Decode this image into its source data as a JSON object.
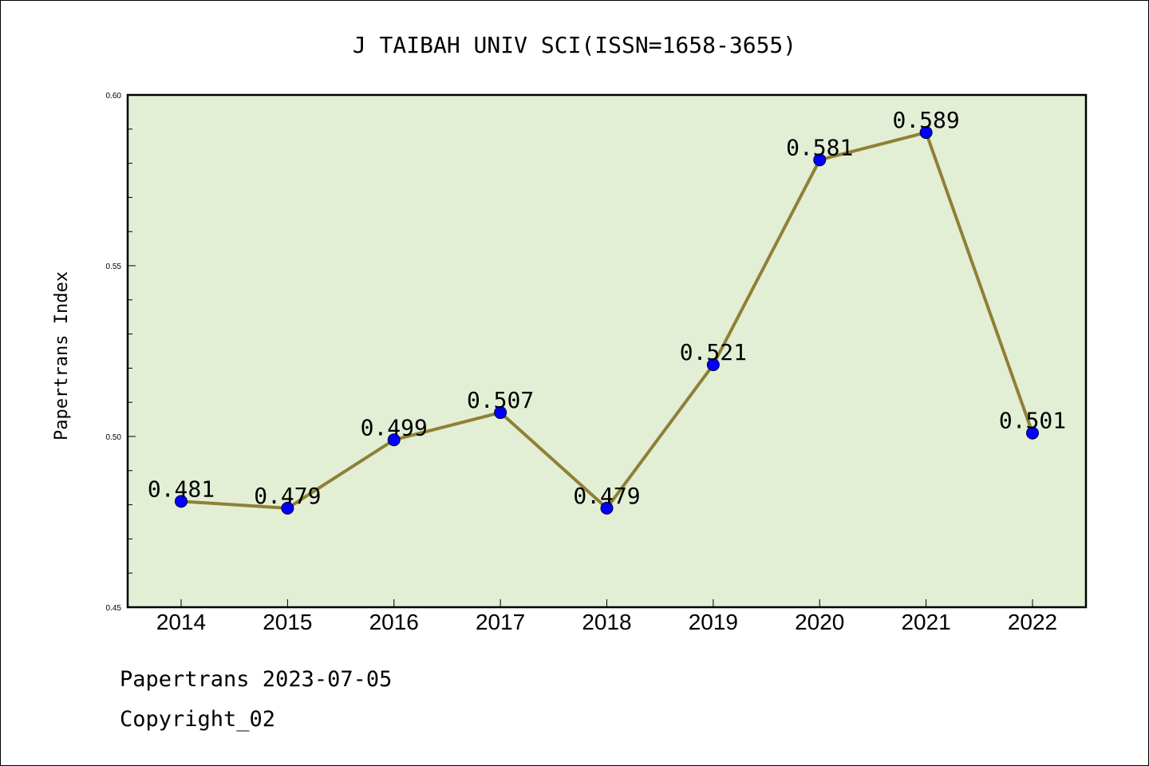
{
  "chart_data": {
    "type": "line",
    "title": "J TAIBAH UNIV SCI(ISSN=1658-3655)",
    "xlabel": "",
    "ylabel": "Papertrans Index",
    "categories": [
      "2014",
      "2015",
      "2016",
      "2017",
      "2018",
      "2019",
      "2020",
      "2021",
      "2022"
    ],
    "series": [
      {
        "values": [
          0.481,
          0.479,
          0.499,
          0.507,
          0.479,
          0.521,
          0.581,
          0.589,
          0.501
        ]
      }
    ],
    "data_labels": [
      "0.481",
      "0.479",
      "0.499",
      "0.507",
      "0.479",
      "0.521",
      "0.581",
      "0.589",
      "0.501"
    ],
    "ylim": [
      0.45,
      0.6
    ],
    "yticks": [
      0.45,
      0.5,
      0.55,
      0.6
    ],
    "ytick_labels": [
      "0.45",
      "0.50",
      "0.55",
      "0.60"
    ],
    "grid": false,
    "colors": {
      "plot_background": "#e2efd5",
      "line": "#8f8036",
      "marker": "#0000ff"
    }
  },
  "footer": {
    "line1": "Papertrans 2023-07-05",
    "line2": "Copyright_02"
  }
}
